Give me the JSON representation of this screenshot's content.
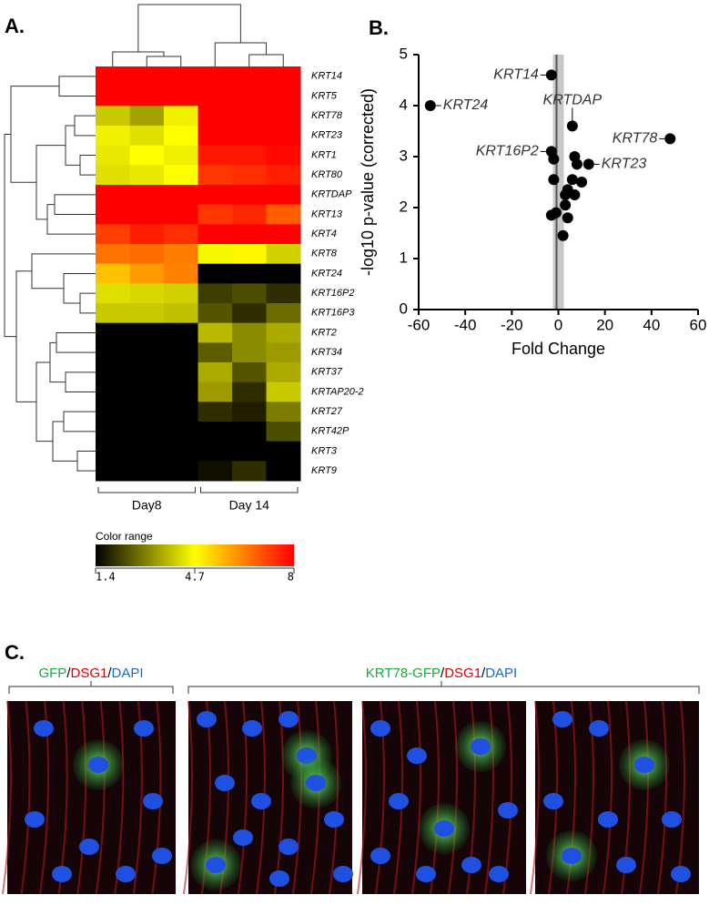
{
  "chart_data": [
    {
      "type": "heatmap",
      "panel_label": "A.",
      "rows": [
        "KRT14",
        "KRT5",
        "KRT78",
        "KRT23",
        "KRT1",
        "KRT80",
        "KRTDAP",
        "KRT13",
        "KRT4",
        "KRT8",
        "KRT24",
        "KRT16P2",
        "KRT16P3",
        "KRT2",
        "KRT34",
        "KRT37",
        "KRTAP20-2",
        "KRT27",
        "KRT42P",
        "KRT3",
        "KRT9"
      ],
      "groups": [
        "Day8",
        "Day 14"
      ],
      "values": [
        [
          8,
          8,
          8,
          8,
          8,
          8
        ],
        [
          8,
          8,
          8,
          8,
          8,
          8
        ],
        [
          4.0,
          3.5,
          4.5,
          8,
          8,
          8
        ],
        [
          4.5,
          4.3,
          4.7,
          8,
          8,
          8
        ],
        [
          4.4,
          4.7,
          4.5,
          7.7,
          7.7,
          7.9
        ],
        [
          4.3,
          4.4,
          4.7,
          7.3,
          7.4,
          7.6
        ],
        [
          8,
          8,
          8,
          8,
          8,
          8
        ],
        [
          8,
          8,
          8,
          7.3,
          7.5,
          6.8
        ],
        [
          7.2,
          7.6,
          7.4,
          8,
          8,
          8
        ],
        [
          6.5,
          6.6,
          6.4,
          4.6,
          4.8,
          4.1
        ],
        [
          5.5,
          6.0,
          6.3,
          1.4,
          1.4,
          1.4
        ],
        [
          4.3,
          4.2,
          4.1,
          2.2,
          2.4,
          2.0
        ],
        [
          4.0,
          4.0,
          3.9,
          2.5,
          2.0,
          2.8
        ],
        [
          1.4,
          1.4,
          1.4,
          3.8,
          3.2,
          3.6
        ],
        [
          1.4,
          1.4,
          1.4,
          2.6,
          3.2,
          3.4
        ],
        [
          1.4,
          1.4,
          1.4,
          3.6,
          2.5,
          3.6
        ],
        [
          1.4,
          1.4,
          1.4,
          3.4,
          2.0,
          4.0
        ],
        [
          1.4,
          1.4,
          1.4,
          2.0,
          1.8,
          3.0
        ],
        [
          1.4,
          1.4,
          1.4,
          1.4,
          1.4,
          2.4
        ],
        [
          1.4,
          1.4,
          1.4,
          1.4,
          1.4,
          1.4
        ],
        [
          1.4,
          1.4,
          1.4,
          1.6,
          2.0,
          1.4
        ]
      ],
      "colorbar": {
        "title": "Color range",
        "ticks": [
          1.4,
          4.7,
          8
        ],
        "colors": [
          "#000000",
          "#ffff00",
          "#ff0000"
        ]
      }
    },
    {
      "type": "scatter",
      "panel_label": "B.",
      "x": [
        -3,
        -55,
        6,
        48,
        -3,
        13,
        -2,
        7,
        8,
        -2,
        6,
        10,
        4,
        3,
        7,
        3,
        -3,
        -1,
        4,
        2
      ],
      "y": [
        4.6,
        4.0,
        3.6,
        3.35,
        3.1,
        2.85,
        2.95,
        3.0,
        2.85,
        2.55,
        2.55,
        2.5,
        2.35,
        2.25,
        2.25,
        2.05,
        1.85,
        1.9,
        1.8,
        1.45
      ],
      "labels": [
        "KRT14",
        "KRT24",
        "KRTDAP",
        "KRT78",
        "KRT16P2",
        "KRT23",
        null,
        null,
        null,
        null,
        null,
        null,
        null,
        null,
        null,
        null,
        null,
        null,
        null,
        null
      ],
      "color": "#000000",
      "xlim": [
        -60,
        60
      ],
      "ylim": [
        0,
        5
      ],
      "xticks": [
        -60,
        -40,
        -20,
        0,
        20,
        40,
        60
      ],
      "yticks": [
        0,
        1,
        2,
        3,
        4,
        5
      ],
      "x_label": "Fold Change",
      "y_label": "-log10 p-value (corrected)"
    }
  ],
  "panel_c": {
    "panel_label": "C.",
    "groups": [
      {
        "parts": [
          "GFP",
          "/",
          "DSG1",
          "/",
          "DAPI"
        ],
        "colors": [
          "#1aaa3a",
          "#000000",
          "#e00000",
          "#000000",
          "#1a6ad0"
        ]
      },
      {
        "parts": [
          "KRT78-GFP",
          "/",
          "DSG1",
          "/",
          "DAPI"
        ],
        "colors": [
          "#1aaa3a",
          "#000000",
          "#e00000",
          "#000000",
          "#1a6ad0"
        ]
      }
    ]
  }
}
